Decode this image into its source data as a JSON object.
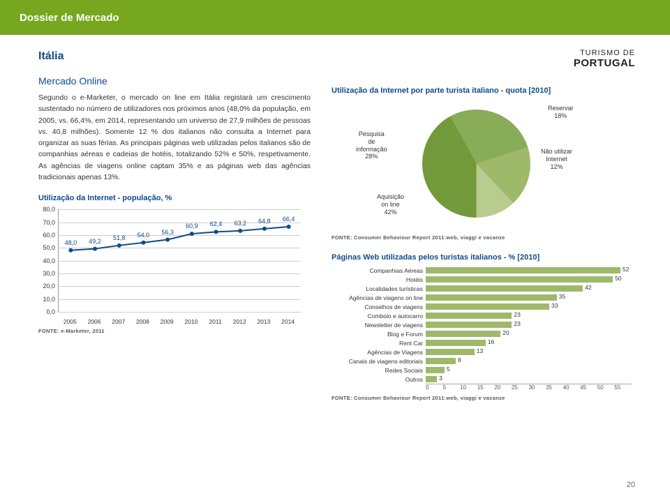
{
  "header": {
    "title": "Dossier de Mercado"
  },
  "country": "Itália",
  "logo": {
    "line1": "TURISMO DE",
    "line2": "PORTUGAL"
  },
  "section_title": "Mercado Online",
  "body_text": "Segundo o e-Marketer, o mercado on line em Itália registará um crescimento sustentado no número de utilizadores nos próximos anos (48,0% da população, em 2005, vs. 66,4%, em 2014, representando um universo de 27,9 milhões de pessoas vs. 40,8 milhões). Somente 12 % dos italianos não consulta a Internet para organizar as suas férias. As principais páginas web utilizadas pelos italianos são de companhias aéreas e cadeias de hotéis, totalizando 52% e 50%, respetivamente. As agências de viagens online captam 35% e as páginas web das agências tradicionais apenas 13%.",
  "line_chart": {
    "title": "Utilização da Internet - população, %",
    "type": "line",
    "years": [
      "2005",
      "2006",
      "2007",
      "2008",
      "2009",
      "2010",
      "2011",
      "2012",
      "2013",
      "2014"
    ],
    "values": [
      48.0,
      49.2,
      51.8,
      54.0,
      56.3,
      60.9,
      62.4,
      63.2,
      64.8,
      66.4
    ],
    "labels": [
      "48,0",
      "49,2",
      "51,8",
      "54,0",
      "56,3",
      "60,9",
      "62,4",
      "63,2",
      "64,8",
      "66,4"
    ],
    "ymin": 0,
    "ymax": 80,
    "ystep": 10,
    "line_color": "#0f4a8a",
    "grid_color": "#cccccc",
    "bg": "#ffffff",
    "source": "FONTE: e-Marketer, 2011"
  },
  "pie_chart": {
    "title": "Utilização da Internet por parte turista italiano - quota [2010]",
    "type": "pie",
    "slices": [
      {
        "label": "Aquisição\non line\n42%",
        "value": 42,
        "color": "#739a3a"
      },
      {
        "label": "Pesquisa\nde\ninformação\n28%",
        "value": 28,
        "color": "#88ac57"
      },
      {
        "label": "Reservar\n18%",
        "value": 18,
        "color": "#9fb96b"
      },
      {
        "label": "Não utilizar\nInternet\n12%",
        "value": 12,
        "color": "#b7cc8e"
      }
    ],
    "source": "FONTE: Consumer Behaviour Report 2011:web, viaggi e vacanze"
  },
  "hbar_chart": {
    "title": "Páginas Web utilizadas pelos turistas italianos - % [2010]",
    "type": "bar",
    "xmax": 55,
    "xstep": 5,
    "bar_color": "#9fb96b",
    "categories": [
      "Companhias Aéreas",
      "Hotéis",
      "Localidades turísticas",
      "Agências de viagens on line",
      "Conselhos de viagens",
      "Comboio e autocarro",
      "Newsletter de viagens",
      "Blog e Forum",
      "Rent Car",
      "Agências de Viagens",
      "Canais de viagens editoriais",
      "Redes Sociais",
      "Outros"
    ],
    "values": [
      52,
      50,
      42,
      35,
      33,
      23,
      23,
      20,
      16,
      13,
      8,
      5,
      3
    ],
    "source": "FONTE: Consumer Behaviour Report 2011:web, viaggi e vacanze"
  },
  "page_number": "20"
}
